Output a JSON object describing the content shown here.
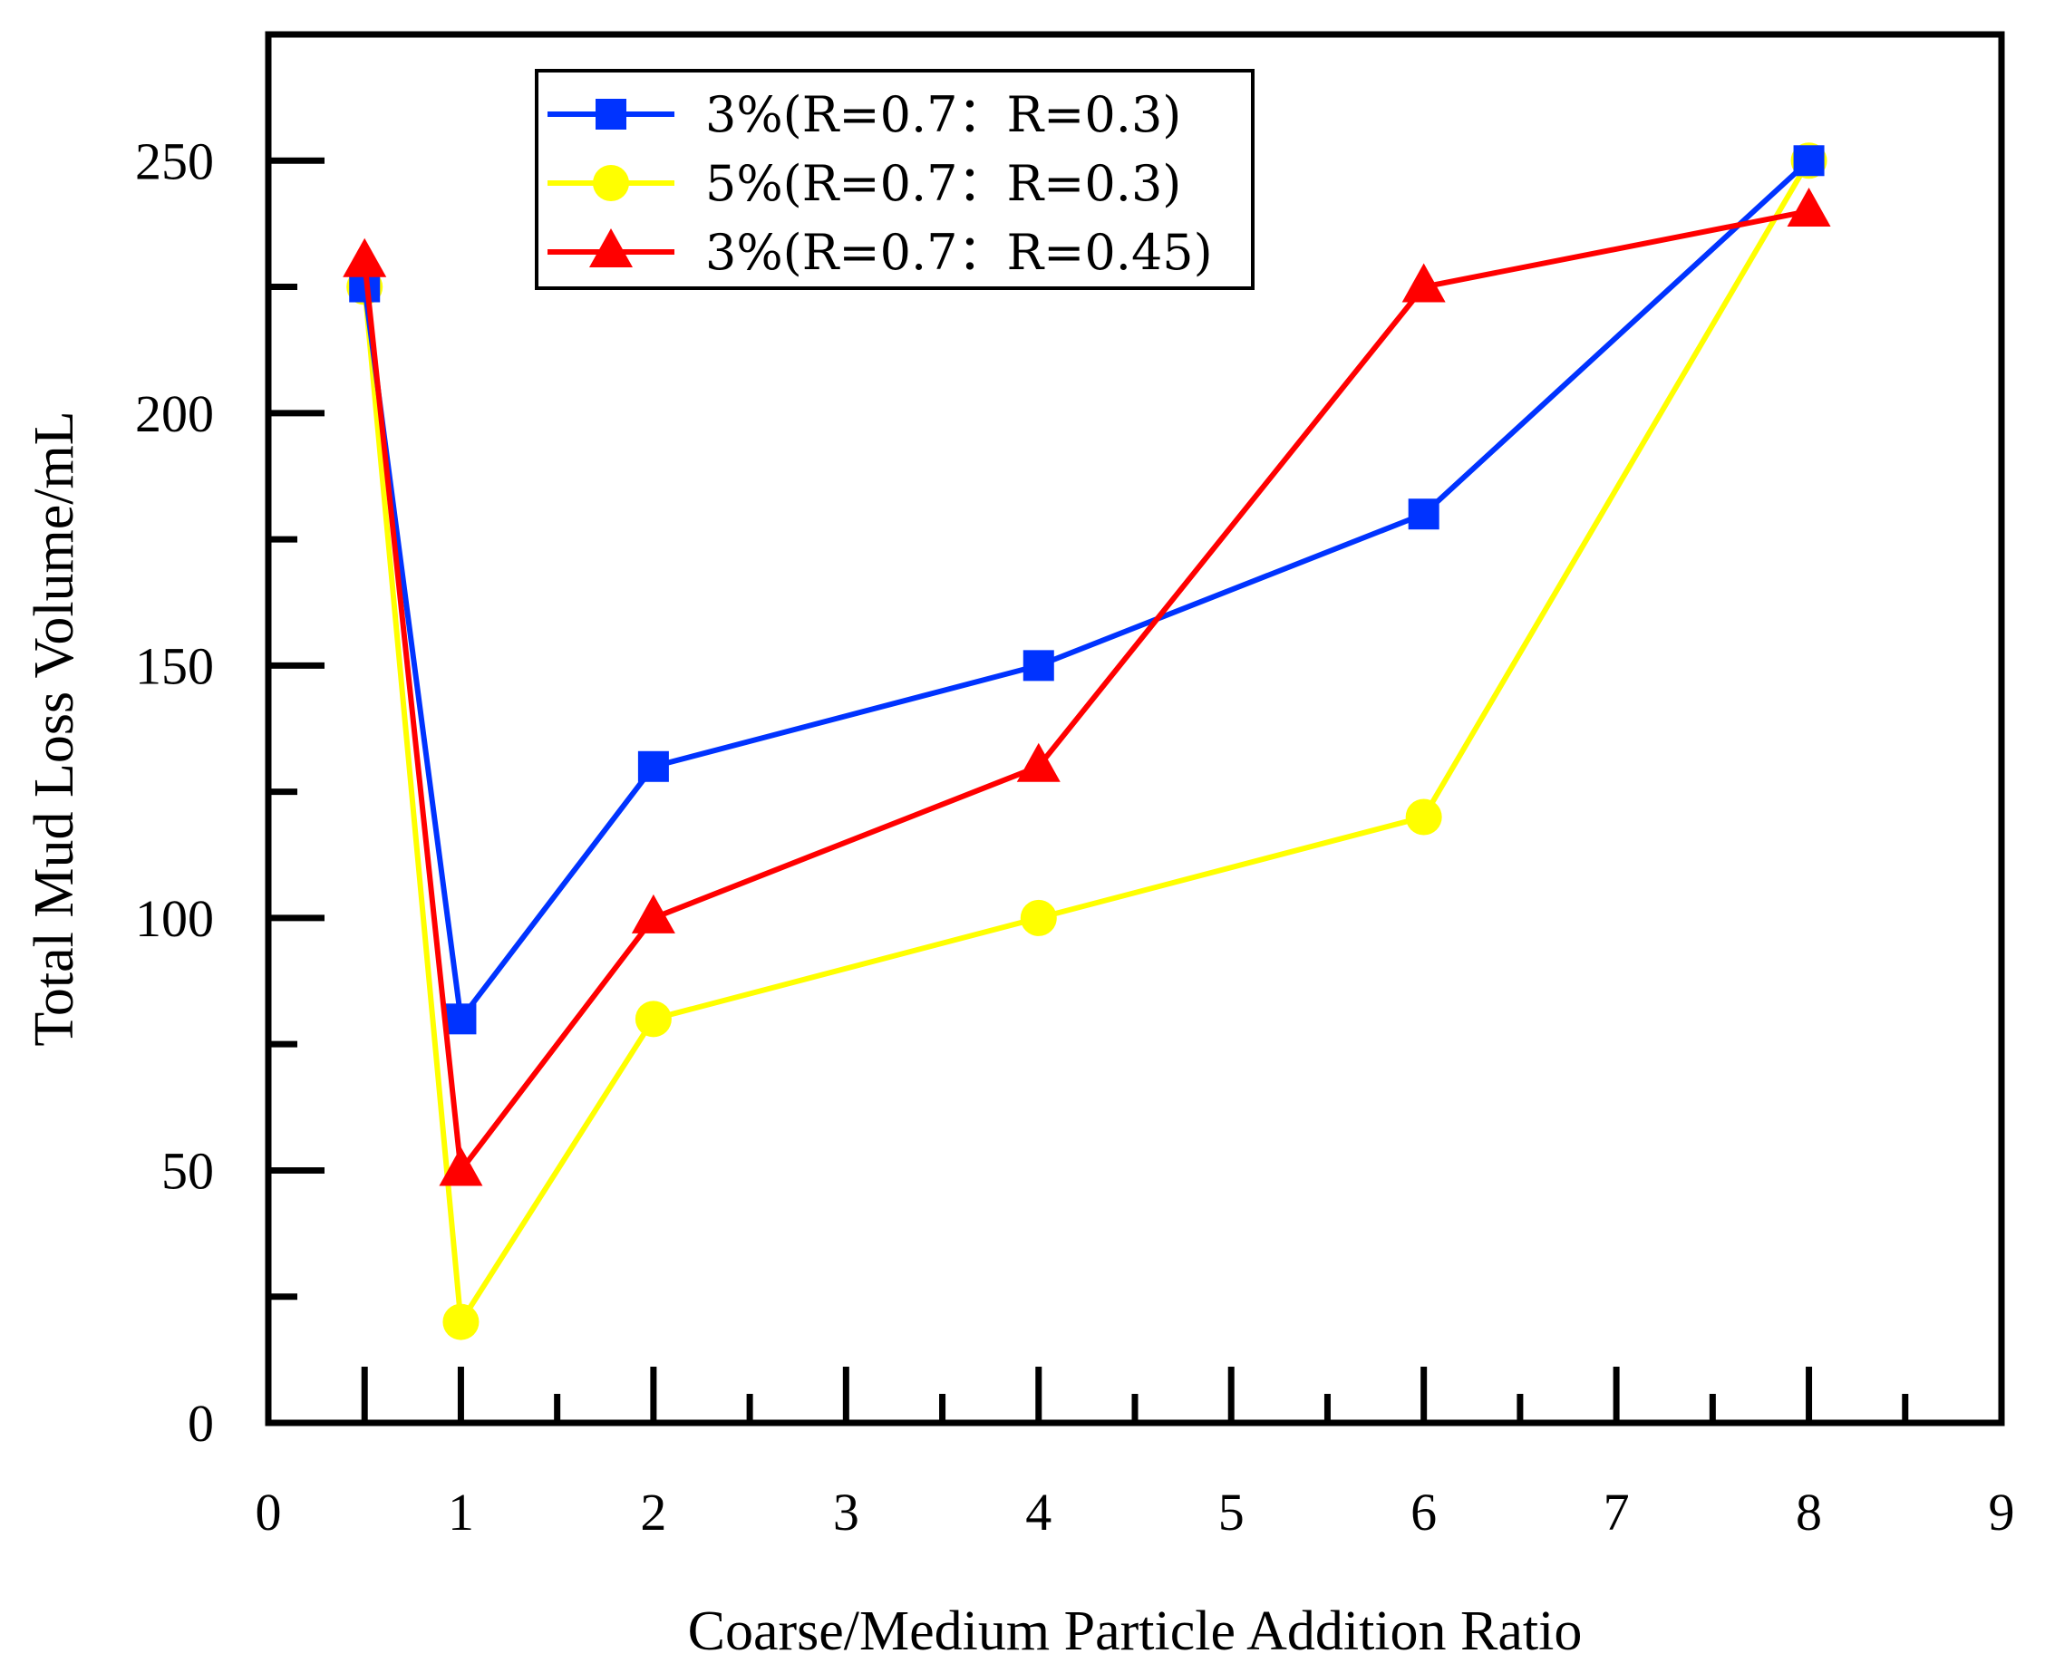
{
  "chart_data": {
    "type": "line",
    "title": "",
    "xlabel": "Coarse/Medium Particle Addition Ratio",
    "ylabel": "Total Mud Loss Volume/mL",
    "xlim": [
      0,
      9
    ],
    "ylim": [
      0,
      275
    ],
    "x_tick_labels": [
      {
        "value": 0,
        "label": "0"
      },
      {
        "value": 1,
        "label": "1"
      },
      {
        "value": 2,
        "label": "2"
      },
      {
        "value": 3,
        "label": "3"
      },
      {
        "value": 4,
        "label": "4"
      },
      {
        "value": 5,
        "label": "5"
      },
      {
        "value": 6,
        "label": "6"
      },
      {
        "value": 7,
        "label": "7"
      },
      {
        "value": 8,
        "label": "8"
      },
      {
        "value": 9,
        "label": "9"
      }
    ],
    "y_tick_labels": [
      {
        "value": 0,
        "label": "0"
      },
      {
        "value": 50,
        "label": "50"
      },
      {
        "value": 100,
        "label": "100"
      },
      {
        "value": 150,
        "label": "150"
      },
      {
        "value": 200,
        "label": "200"
      },
      {
        "value": 250,
        "label": "250"
      }
    ],
    "x_major_ticks": [
      0.5,
      1,
      2,
      3,
      4,
      5,
      6,
      7,
      8
    ],
    "x_minor_ticks": [
      1.5,
      2.5,
      3.5,
      4.5,
      5.5,
      6.5,
      7.5,
      8.5
    ],
    "y_minor_ticks": [
      25,
      75,
      125,
      175,
      225
    ],
    "x": [
      0.5,
      1,
      2,
      4,
      6,
      8
    ],
    "series": [
      {
        "name": "3%(R=0.7：R=0.3)",
        "marker": "square",
        "color": "#0033ff",
        "values": [
          225,
          80,
          130,
          150,
          180,
          250
        ]
      },
      {
        "name": "5%(R=0.7：R=0.3)",
        "marker": "circle",
        "color": "#ffff00",
        "values": [
          225,
          20,
          80,
          100,
          120,
          250
        ]
      },
      {
        "name": "3%(R=0.7：R=0.45)",
        "marker": "triangle",
        "color": "#ff0000",
        "values": [
          230,
          50,
          100,
          130,
          225,
          240
        ]
      }
    ],
    "legend_position": "top-center",
    "grid": false
  }
}
